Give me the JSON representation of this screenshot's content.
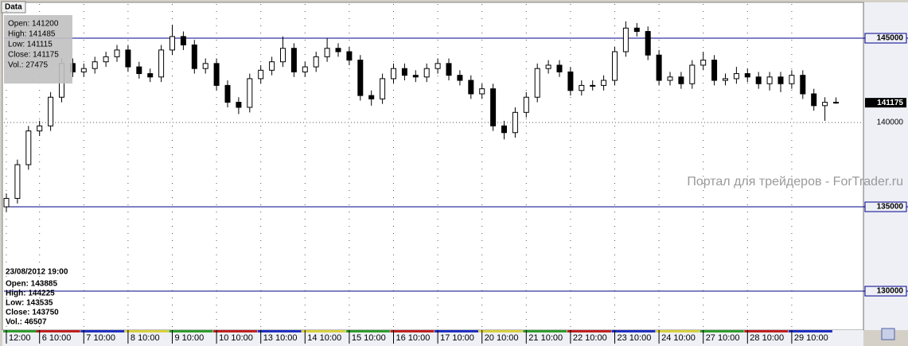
{
  "chart_data": {
    "type": "candlestick",
    "tab_title": "Data",
    "categories": [
      "12:00",
      null,
      null,
      "6 10:00",
      null,
      null,
      null,
      "7 10:00",
      null,
      null,
      null,
      "8 10:00",
      null,
      null,
      null,
      "9 10:00",
      null,
      null,
      null,
      "10 10:00",
      null,
      null,
      null,
      "13 10:00",
      null,
      null,
      null,
      "14 10:00",
      null,
      null,
      null,
      "15 10:00",
      null,
      null,
      null,
      "16 10:00",
      null,
      null,
      null,
      "17 10:00",
      null,
      null,
      null,
      "20 10:00",
      null,
      null,
      null,
      "21 10:00",
      null,
      null,
      null,
      "22 10:00",
      null,
      null,
      null,
      "23 10:00",
      null,
      null,
      null,
      "24 10:00",
      null,
      null,
      null,
      "27 10:00",
      null,
      null,
      null,
      "28 10:00",
      null,
      null,
      null,
      "29 10:00",
      null,
      null,
      null,
      null
    ],
    "open": [
      135000,
      135500,
      137500,
      139500,
      139800,
      141500,
      143500,
      143000,
      143200,
      143600,
      143900,
      144300,
      143300,
      142900,
      142700,
      144300,
      145100,
      144600,
      143200,
      143500,
      142200,
      141200,
      140900,
      142600,
      143100,
      143600,
      144400,
      143000,
      143300,
      143900,
      144400,
      144200,
      143700,
      141600,
      141400,
      142600,
      143200,
      142800,
      142700,
      143200,
      143500,
      142800,
      142500,
      141700,
      142000,
      139800,
      139400,
      140600,
      141500,
      143200,
      143400,
      143000,
      141900,
      142200,
      142200,
      142500,
      144200,
      145600,
      145400,
      144000,
      142500,
      142700,
      142300,
      143400,
      143700,
      142500,
      142600,
      142900,
      142700,
      142300,
      142700,
      142300,
      142800,
      141700,
      141000,
      141200
    ],
    "high": [
      135800,
      137800,
      139800,
      140100,
      141800,
      143800,
      143800,
      143500,
      143900,
      144200,
      144600,
      144600,
      143600,
      143200,
      144600,
      145800,
      145400,
      144900,
      143800,
      143800,
      142500,
      141500,
      142900,
      143400,
      143900,
      145100,
      144700,
      143600,
      144200,
      145000,
      144700,
      144500,
      144000,
      141900,
      142900,
      143500,
      143500,
      143100,
      143500,
      143800,
      143800,
      143100,
      142800,
      142300,
      142300,
      140100,
      140900,
      141800,
      143500,
      143700,
      143700,
      143300,
      142500,
      142500,
      142800,
      144500,
      146000,
      145900,
      145700,
      144300,
      143000,
      143000,
      143700,
      144200,
      144000,
      142900,
      143300,
      143200,
      143000,
      143000,
      143000,
      143100,
      143100,
      142000,
      141500,
      141485
    ],
    "low": [
      134700,
      135200,
      137200,
      139200,
      139500,
      141200,
      142700,
      142700,
      142900,
      143300,
      143600,
      143000,
      142600,
      142400,
      142400,
      144000,
      144300,
      142900,
      142900,
      141900,
      140900,
      140500,
      140600,
      142300,
      142800,
      143300,
      142700,
      142700,
      143000,
      143600,
      143900,
      143400,
      141300,
      141000,
      141100,
      142300,
      142500,
      142400,
      142400,
      142900,
      142500,
      142200,
      141400,
      141400,
      139500,
      139000,
      139100,
      140300,
      141200,
      142900,
      142700,
      141600,
      141600,
      141900,
      141900,
      142200,
      143900,
      145100,
      143700,
      142200,
      142200,
      142000,
      142000,
      143100,
      142200,
      142200,
      142300,
      142400,
      142000,
      141900,
      141800,
      142000,
      141400,
      140700,
      140100,
      141115
    ],
    "close": [
      135500,
      137500,
      139500,
      139800,
      141500,
      143500,
      143000,
      143200,
      143600,
      143900,
      144300,
      143300,
      142900,
      142700,
      144300,
      145100,
      144600,
      143200,
      143500,
      142200,
      141200,
      140900,
      142600,
      143100,
      143600,
      144400,
      143000,
      143300,
      143900,
      144400,
      144200,
      143700,
      141600,
      141400,
      142600,
      143200,
      142800,
      142700,
      143200,
      143500,
      142800,
      142500,
      141700,
      142000,
      139800,
      139400,
      140600,
      141500,
      143200,
      143400,
      143000,
      141900,
      142200,
      142200,
      142500,
      144200,
      145600,
      145400,
      144000,
      142500,
      142700,
      142300,
      143400,
      143700,
      142500,
      142600,
      142900,
      142700,
      142300,
      142700,
      142300,
      142800,
      141700,
      141000,
      141200,
      141175
    ],
    "ylim": [
      127690,
      147030
    ],
    "yticks": [
      145000,
      140000,
      135000,
      130000
    ],
    "level_lines": [
      145000,
      135000,
      130000
    ],
    "level_color": "#00008b",
    "grid": true,
    "data_window": [
      "Open: 141200",
      "High: 141485",
      "Low: 141115",
      "Close: 141175",
      "Vol.: 27475"
    ],
    "cursor_info": [
      "23/08/2012 19:00",
      "Open: 143885",
      "High: 144225",
      "Low: 143535",
      "Close: 143750",
      "Vol.: 46507"
    ],
    "watermark": "Портал для трейдеров - ForTrader.ru"
  }
}
